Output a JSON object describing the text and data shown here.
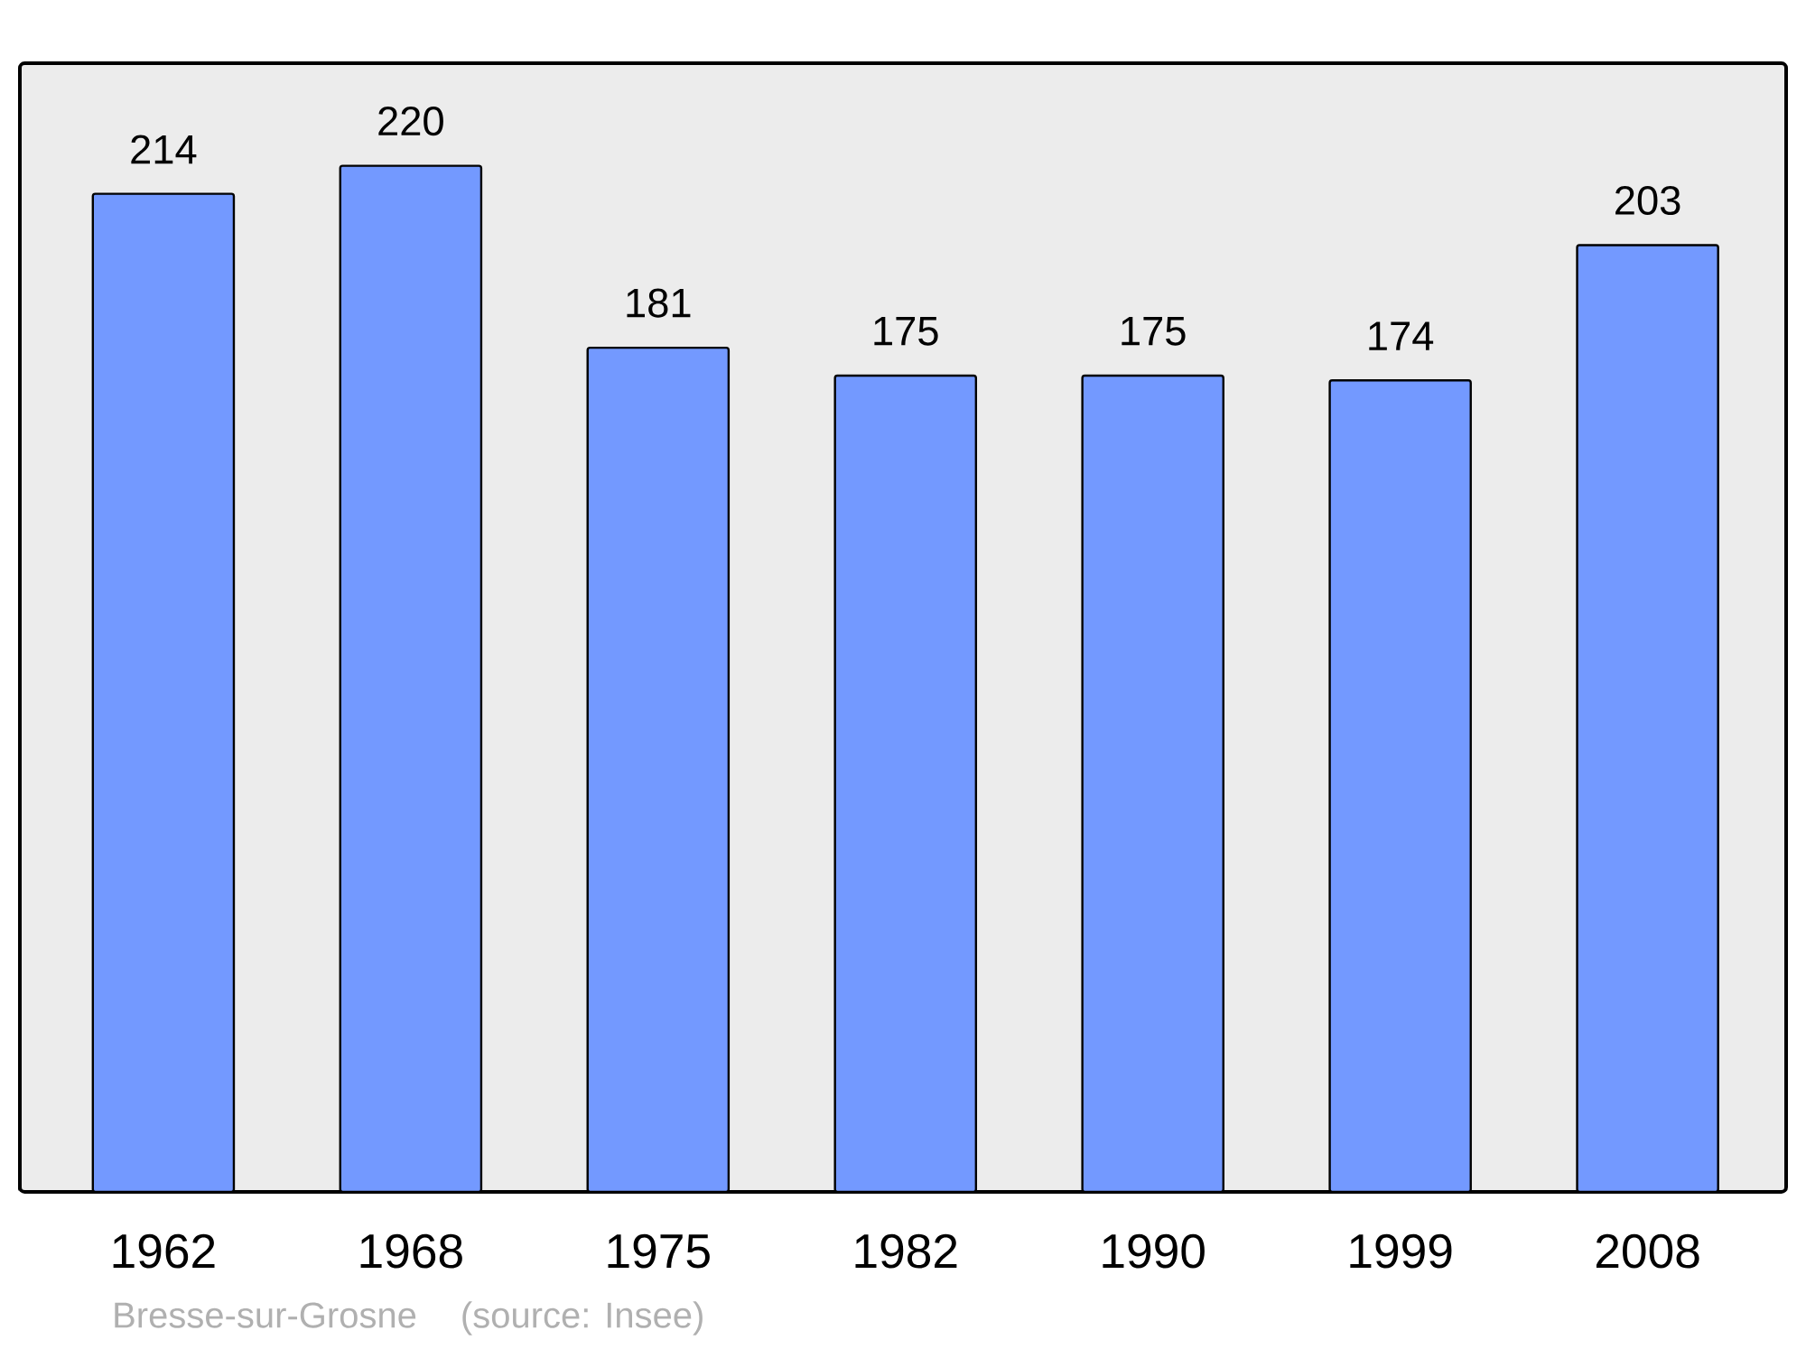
{
  "chart_data": {
    "type": "bar",
    "categories": [
      "1962",
      "1968",
      "1975",
      "1982",
      "1990",
      "1999",
      "2008"
    ],
    "values": [
      214,
      220,
      181,
      175,
      175,
      174,
      203
    ],
    "color": "#7399ff",
    "ylim": [
      0,
      242
    ],
    "tick_labels": "x",
    "data_labels": true,
    "annotations": [
      "Bresse-sur-Grosne    (source: Insee)"
    ]
  }
}
